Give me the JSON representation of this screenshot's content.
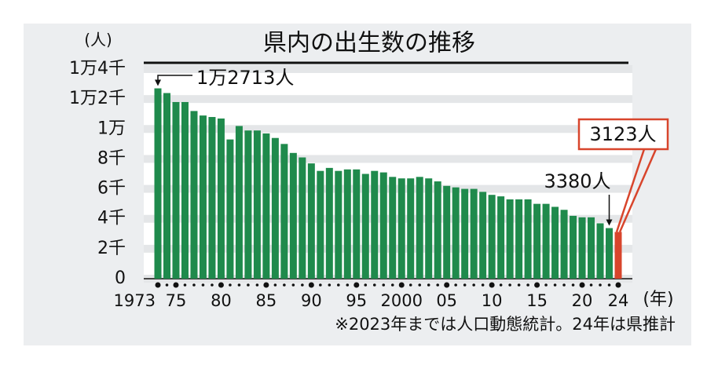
{
  "chart_data": {
    "type": "bar",
    "title": "県内の出生数の推移",
    "y_unit": "(人)",
    "x_unit": "(年)",
    "note": "※2023年までは人口動態統計。24年は県推計",
    "annotations": [
      "1万2713人",
      "3380人",
      "3123人"
    ],
    "categories": [
      "1973",
      null,
      "75",
      null,
      null,
      null,
      null,
      "80",
      null,
      null,
      null,
      null,
      "85",
      null,
      null,
      null,
      null,
      "90",
      null,
      null,
      null,
      null,
      "95",
      null,
      null,
      null,
      null,
      "2000",
      null,
      null,
      null,
      null,
      "05",
      null,
      null,
      null,
      null,
      "10",
      null,
      null,
      null,
      null,
      "15",
      null,
      null,
      null,
      null,
      "20",
      null,
      null,
      null,
      "24"
    ],
    "values": [
      12713,
      12400,
      11800,
      11800,
      11200,
      10900,
      10800,
      10700,
      9300,
      10200,
      9900,
      9900,
      9700,
      9400,
      9000,
      8400,
      8100,
      7700,
      7200,
      7400,
      7200,
      7300,
      7300,
      7000,
      7200,
      7100,
      6800,
      6700,
      6700,
      6800,
      6700,
      6500,
      6200,
      6100,
      6000,
      6000,
      5800,
      5600,
      5500,
      5300,
      5300,
      5300,
      5000,
      5000,
      4800,
      4600,
      4200,
      4100,
      4100,
      3700,
      3380,
      3123
    ],
    "colors": [
      "#1f8a4c",
      "#1f8a4c",
      "#1f8a4c",
      "#1f8a4c",
      "#1f8a4c",
      "#1f8a4c",
      "#1f8a4c",
      "#1f8a4c",
      "#1f8a4c",
      "#1f8a4c",
      "#1f8a4c",
      "#1f8a4c",
      "#1f8a4c",
      "#1f8a4c",
      "#1f8a4c",
      "#1f8a4c",
      "#1f8a4c",
      "#1f8a4c",
      "#1f8a4c",
      "#1f8a4c",
      "#1f8a4c",
      "#1f8a4c",
      "#1f8a4c",
      "#1f8a4c",
      "#1f8a4c",
      "#1f8a4c",
      "#1f8a4c",
      "#1f8a4c",
      "#1f8a4c",
      "#1f8a4c",
      "#1f8a4c",
      "#1f8a4c",
      "#1f8a4c",
      "#1f8a4c",
      "#1f8a4c",
      "#1f8a4c",
      "#1f8a4c",
      "#1f8a4c",
      "#1f8a4c",
      "#1f8a4c",
      "#1f8a4c",
      "#1f8a4c",
      "#1f8a4c",
      "#1f8a4c",
      "#1f8a4c",
      "#1f8a4c",
      "#1f8a4c",
      "#1f8a4c",
      "#1f8a4c",
      "#1f8a4c",
      "#1f8a4c",
      "#d8452c"
    ],
    "ylim": [
      0,
      14000
    ],
    "yticks": [
      0,
      {
        "value": 2000,
        "label": "2千"
      },
      {
        "value": 4000,
        "label": "4千"
      },
      {
        "value": 6000,
        "label": "6千"
      },
      {
        "value": 8000,
        "label": "8千"
      },
      {
        "value": 10000,
        "label": "1万"
      },
      {
        "value": 12000,
        "label": "1万2千"
      },
      {
        "value": 14000,
        "label": "1万4千"
      }
    ],
    "grid": true
  }
}
